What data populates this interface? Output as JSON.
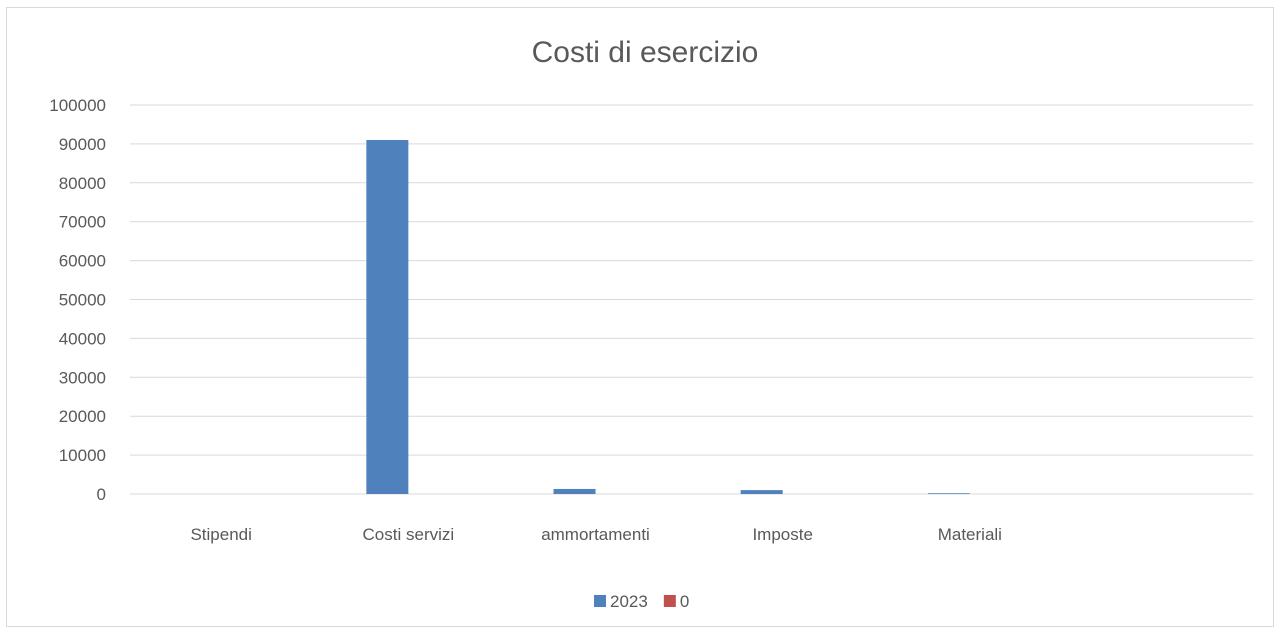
{
  "chart_data": {
    "type": "bar",
    "title": "Costi di esercizio",
    "xlabel": "",
    "ylabel": "",
    "categories": [
      "Stipendi",
      "Costi servizi",
      "ammortamenti",
      "Imposte",
      "Materiali",
      ""
    ],
    "series": [
      {
        "name": "2023",
        "color": "#4f81bd",
        "values": [
          0,
          91000,
          1300,
          1000,
          200,
          0
        ]
      },
      {
        "name": "0",
        "color": "#c0504d",
        "values": [
          0,
          0,
          0,
          0,
          0,
          0
        ]
      }
    ],
    "ylim": [
      0,
      100000
    ],
    "yticks": [
      "0",
      "10000",
      "20000",
      "30000",
      "40000",
      "50000",
      "60000",
      "70000",
      "80000",
      "90000",
      "100000"
    ],
    "grid": true,
    "legend_position": "bottom"
  }
}
